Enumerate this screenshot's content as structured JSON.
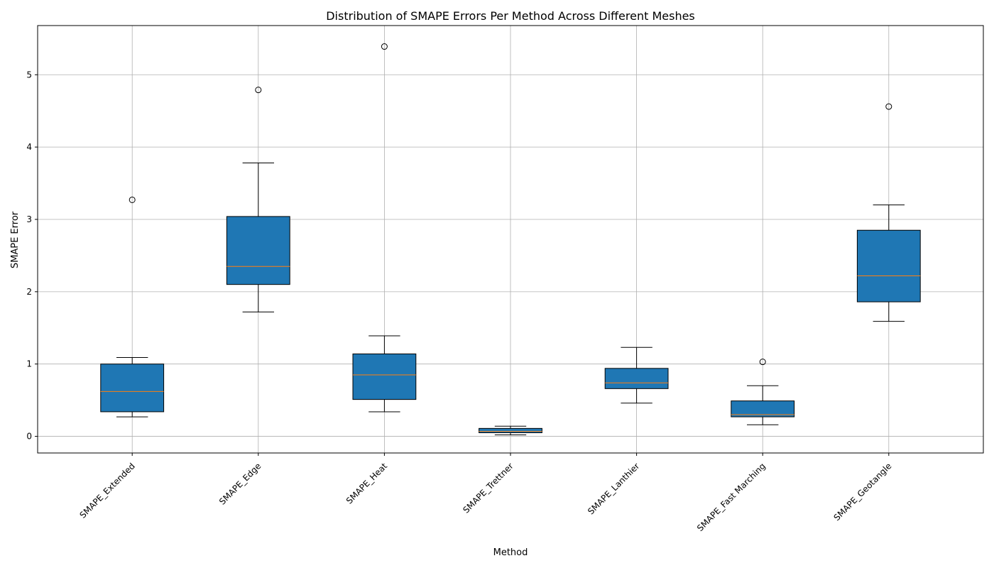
{
  "chart_data": {
    "type": "box",
    "title": "Distribution of SMAPE Errors Per Method Across Different Meshes",
    "xlabel": "Method",
    "ylabel": "SMAPE Error",
    "ylim": [
      -0.23,
      5.68
    ],
    "yticks": [
      0,
      1,
      2,
      3,
      4,
      5
    ],
    "grid": true,
    "categories": [
      "SMAPE_Extended",
      "SMAPE_Edge",
      "SMAPE_Heat",
      "SMAPE_Trettner",
      "SMAPE_Lanthier",
      "SMAPE_Fast Marching",
      "SMAPE_Geotangle"
    ],
    "boxes": [
      {
        "whisker_low": 0.27,
        "q1": 0.34,
        "median": 0.62,
        "q3": 1.0,
        "whisker_high": 1.09,
        "outliers": [
          3.27
        ]
      },
      {
        "whisker_low": 1.72,
        "q1": 2.1,
        "median": 2.35,
        "q3": 3.04,
        "whisker_high": 3.78,
        "outliers": [
          4.79
        ]
      },
      {
        "whisker_low": 0.34,
        "q1": 0.51,
        "median": 0.85,
        "q3": 1.14,
        "whisker_high": 1.39,
        "outliers": [
          5.39
        ]
      },
      {
        "whisker_low": 0.02,
        "q1": 0.05,
        "median": 0.07,
        "q3": 0.11,
        "whisker_high": 0.14,
        "outliers": []
      },
      {
        "whisker_low": 0.46,
        "q1": 0.66,
        "median": 0.74,
        "q3": 0.94,
        "whisker_high": 1.23,
        "outliers": []
      },
      {
        "whisker_low": 0.16,
        "q1": 0.27,
        "median": 0.3,
        "q3": 0.49,
        "whisker_high": 0.7,
        "outliers": [
          1.03
        ]
      },
      {
        "whisker_low": 1.59,
        "q1": 1.86,
        "median": 2.22,
        "q3": 2.85,
        "whisker_high": 3.2,
        "outliers": [
          4.56
        ]
      }
    ],
    "colors": {
      "box_fill": "#1f77b4",
      "median": "#ff7f0e",
      "grid": "#b0b0b0"
    }
  }
}
